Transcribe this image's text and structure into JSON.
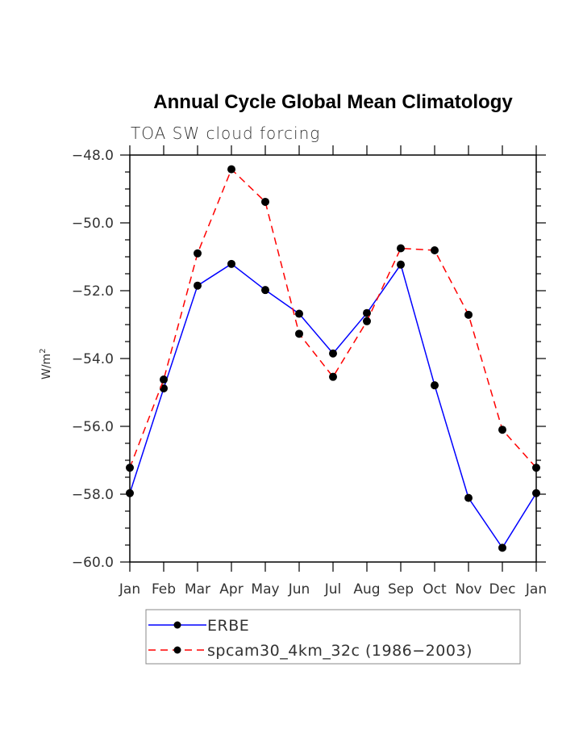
{
  "chart_data": {
    "type": "line",
    "title": "Annual Cycle Global Mean Climatology",
    "subtitle": "TOA SW cloud forcing",
    "xlabel": "",
    "ylabel": "W/m",
    "ylabel_superscript": "2",
    "categories": [
      "Jan",
      "Feb",
      "Mar",
      "Apr",
      "May",
      "Jun",
      "Jul",
      "Aug",
      "Sep",
      "Oct",
      "Nov",
      "Dec",
      "Jan"
    ],
    "ylim": [
      -60.0,
      -48.0
    ],
    "yticks": [
      -48.0,
      -50.0,
      -52.0,
      -54.0,
      -56.0,
      -58.0,
      -60.0
    ],
    "ytick_labels": [
      "−48.0",
      "−50.0",
      "−52.0",
      "−54.0",
      "−56.0",
      "−58.0",
      "−60.0"
    ],
    "yminor_step": 0.5,
    "grid": false,
    "legend_position": "bottom",
    "series": [
      {
        "name": "ERBE",
        "color": "#0000ff",
        "style": "solid",
        "marker": "circle",
        "values": [
          -57.97,
          -54.88,
          -51.85,
          -51.21,
          -51.98,
          -52.68,
          -53.85,
          -52.66,
          -51.23,
          -54.79,
          -58.11,
          -59.58,
          -57.97
        ]
      },
      {
        "name": "spcam30_4km_32c (1986−2003)",
        "color": "#ff0000",
        "style": "dashed",
        "marker": "circle",
        "values": [
          -57.22,
          -54.62,
          -50.9,
          -48.42,
          -49.38,
          -53.27,
          -54.54,
          -52.9,
          -50.75,
          -50.81,
          -52.71,
          -56.1,
          -57.22
        ]
      }
    ]
  }
}
